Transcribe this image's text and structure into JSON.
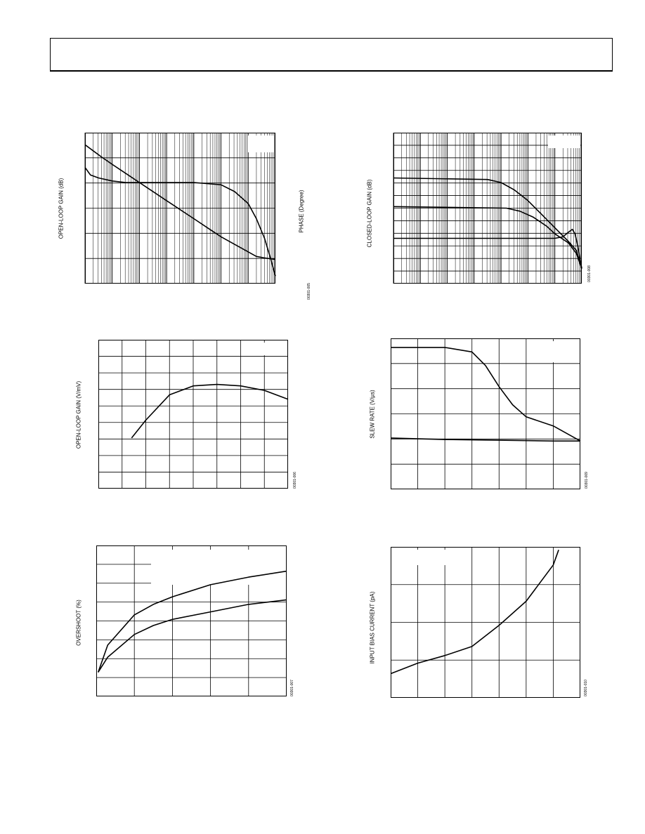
{
  "header": {
    "title": ""
  },
  "charts": [
    {
      "id": "c1",
      "ylabel": "OPEN-LOOP GAIN (dB)",
      "y2label": "PHASE (Degree)",
      "code": "00301-005"
    },
    {
      "id": "c2",
      "ylabel": "CLOSED-LOOP GAIN (dB)",
      "code": "00301-008"
    },
    {
      "id": "c3",
      "ylabel": "OPEN-LOOP GAIN (V/mV)",
      "code": "00301-006"
    },
    {
      "id": "c4",
      "ylabel": "SLEW RATE (V/µs)",
      "code": "00301-009"
    },
    {
      "id": "c5",
      "ylabel": "OVERSHOOT (%)",
      "code": "00301-007"
    },
    {
      "id": "c6",
      "ylabel": "INPUT BIAS CURRENT (pA)",
      "code": "00301-010"
    }
  ],
  "chart_data": [
    {
      "type": "line",
      "xscale": "log",
      "xdecades": 7,
      "ydivs": 6,
      "ylabel": "OPEN-LOOP GAIN (dB)",
      "y2label": "PHASE (Degree)",
      "legend_placement": "top-right",
      "series": [
        {
          "values": [
            [
              0,
              0.08
            ],
            [
              0.3,
              0.12
            ],
            [
              0.6,
              0.16
            ],
            [
              1,
              0.21
            ],
            [
              1.5,
              0.27
            ],
            [
              2,
              0.33
            ],
            [
              2.5,
              0.39
            ],
            [
              3,
              0.45
            ],
            [
              3.5,
              0.51
            ],
            [
              4,
              0.57
            ],
            [
              4.5,
              0.63
            ],
            [
              5,
              0.69
            ],
            [
              5.5,
              0.74
            ],
            [
              6,
              0.79
            ],
            [
              6.3,
              0.82
            ],
            [
              6.6,
              0.83
            ],
            [
              7,
              0.84
            ]
          ]
        },
        {
          "values": [
            [
              0,
              0.23
            ],
            [
              0.2,
              0.28
            ],
            [
              0.5,
              0.3
            ],
            [
              1,
              0.32
            ],
            [
              1.5,
              0.33
            ],
            [
              2,
              0.33
            ],
            [
              3,
              0.33
            ],
            [
              4,
              0.33
            ],
            [
              5,
              0.345
            ],
            [
              5.5,
              0.39
            ],
            [
              6,
              0.47
            ],
            [
              6.3,
              0.57
            ],
            [
              6.6,
              0.7
            ],
            [
              6.8,
              0.82
            ],
            [
              7,
              0.95
            ]
          ]
        }
      ]
    },
    {
      "type": "line",
      "xscale": "log",
      "xdecades": 7,
      "ydivs": 12,
      "ylabel": "CLOSED-LOOP GAIN (dB)",
      "legend_placement": "top-right",
      "series": [
        {
          "values": [
            [
              0,
              0.3
            ],
            [
              3.5,
              0.31
            ],
            [
              4,
              0.33
            ],
            [
              4.5,
              0.38
            ],
            [
              5,
              0.45
            ],
            [
              5.5,
              0.54
            ],
            [
              6,
              0.63
            ],
            [
              6.5,
              0.72
            ],
            [
              6.8,
              0.78
            ],
            [
              7,
              0.9
            ]
          ]
        },
        {
          "values": [
            [
              0,
              0.49
            ],
            [
              4.2,
              0.5
            ],
            [
              4.7,
              0.52
            ],
            [
              5.2,
              0.56
            ],
            [
              5.7,
              0.62
            ],
            [
              6,
              0.67
            ],
            [
              6.5,
              0.73
            ],
            [
              6.8,
              0.8
            ],
            [
              7,
              0.9
            ]
          ]
        },
        {
          "values": [
            [
              0,
              0.7
            ],
            [
              6,
              0.7
            ],
            [
              6.3,
              0.69
            ],
            [
              6.5,
              0.66
            ],
            [
              6.65,
              0.64
            ],
            [
              6.75,
              0.67
            ],
            [
              6.85,
              0.75
            ],
            [
              7,
              0.9
            ]
          ]
        }
      ]
    },
    {
      "type": "line",
      "xdivs": 8,
      "ydivs": 9,
      "ylabel": "OPEN-LOOP GAIN (V/mV)",
      "legend_placement": "top-right",
      "series": [
        {
          "values": [
            [
              1.4,
              0.66
            ],
            [
              2,
              0.54
            ],
            [
              3,
              0.37
            ],
            [
              4,
              0.31
            ],
            [
              5,
              0.3
            ],
            [
              6,
              0.31
            ],
            [
              7,
              0.34
            ],
            [
              8,
              0.4
            ]
          ]
        }
      ]
    },
    {
      "type": "line",
      "xdivs": 7,
      "ydivs": 6,
      "ylabel": "SLEW RATE (V/µs)",
      "legend_placement": "top-right",
      "series": [
        {
          "values": [
            [
              0,
              0.06
            ],
            [
              2,
              0.06
            ],
            [
              3,
              0.09
            ],
            [
              3.5,
              0.18
            ],
            [
              4,
              0.32
            ],
            [
              4.5,
              0.44
            ],
            [
              5,
              0.52
            ],
            [
              6,
              0.58
            ],
            [
              7,
              0.68
            ]
          ]
        },
        {
          "values": [
            [
              0,
              0.66
            ],
            [
              2,
              0.67
            ],
            [
              4,
              0.675
            ],
            [
              6,
              0.68
            ],
            [
              7,
              0.68
            ]
          ]
        }
      ]
    },
    {
      "type": "line",
      "xdivs": 5,
      "ydivs": 8,
      "ylabel": "OVERSHOOT (%)",
      "legend_placement": "top-right",
      "series": [
        {
          "values": [
            [
              0.05,
              0.84
            ],
            [
              0.3,
              0.66
            ],
            [
              1,
              0.46
            ],
            [
              1.5,
              0.39
            ],
            [
              2,
              0.34
            ],
            [
              3,
              0.26
            ],
            [
              4,
              0.21
            ],
            [
              5,
              0.17
            ]
          ]
        },
        {
          "values": [
            [
              0.05,
              0.84
            ],
            [
              0.3,
              0.74
            ],
            [
              1,
              0.59
            ],
            [
              1.5,
              0.53
            ],
            [
              2,
              0.49
            ],
            [
              3,
              0.44
            ],
            [
              4,
              0.39
            ],
            [
              5,
              0.36
            ]
          ]
        }
      ]
    },
    {
      "type": "line",
      "xdivs": 7,
      "ydivs": 4,
      "ylabel": "INPUT BIAS CURRENT (pA)",
      "legend_placement": "top-left",
      "series": [
        {
          "values": [
            [
              0,
              0.84
            ],
            [
              1,
              0.77
            ],
            [
              2,
              0.72
            ],
            [
              3,
              0.66
            ],
            [
              4,
              0.52
            ],
            [
              5,
              0.36
            ],
            [
              6,
              0.12
            ],
            [
              6.2,
              0.02
            ]
          ]
        }
      ]
    }
  ]
}
